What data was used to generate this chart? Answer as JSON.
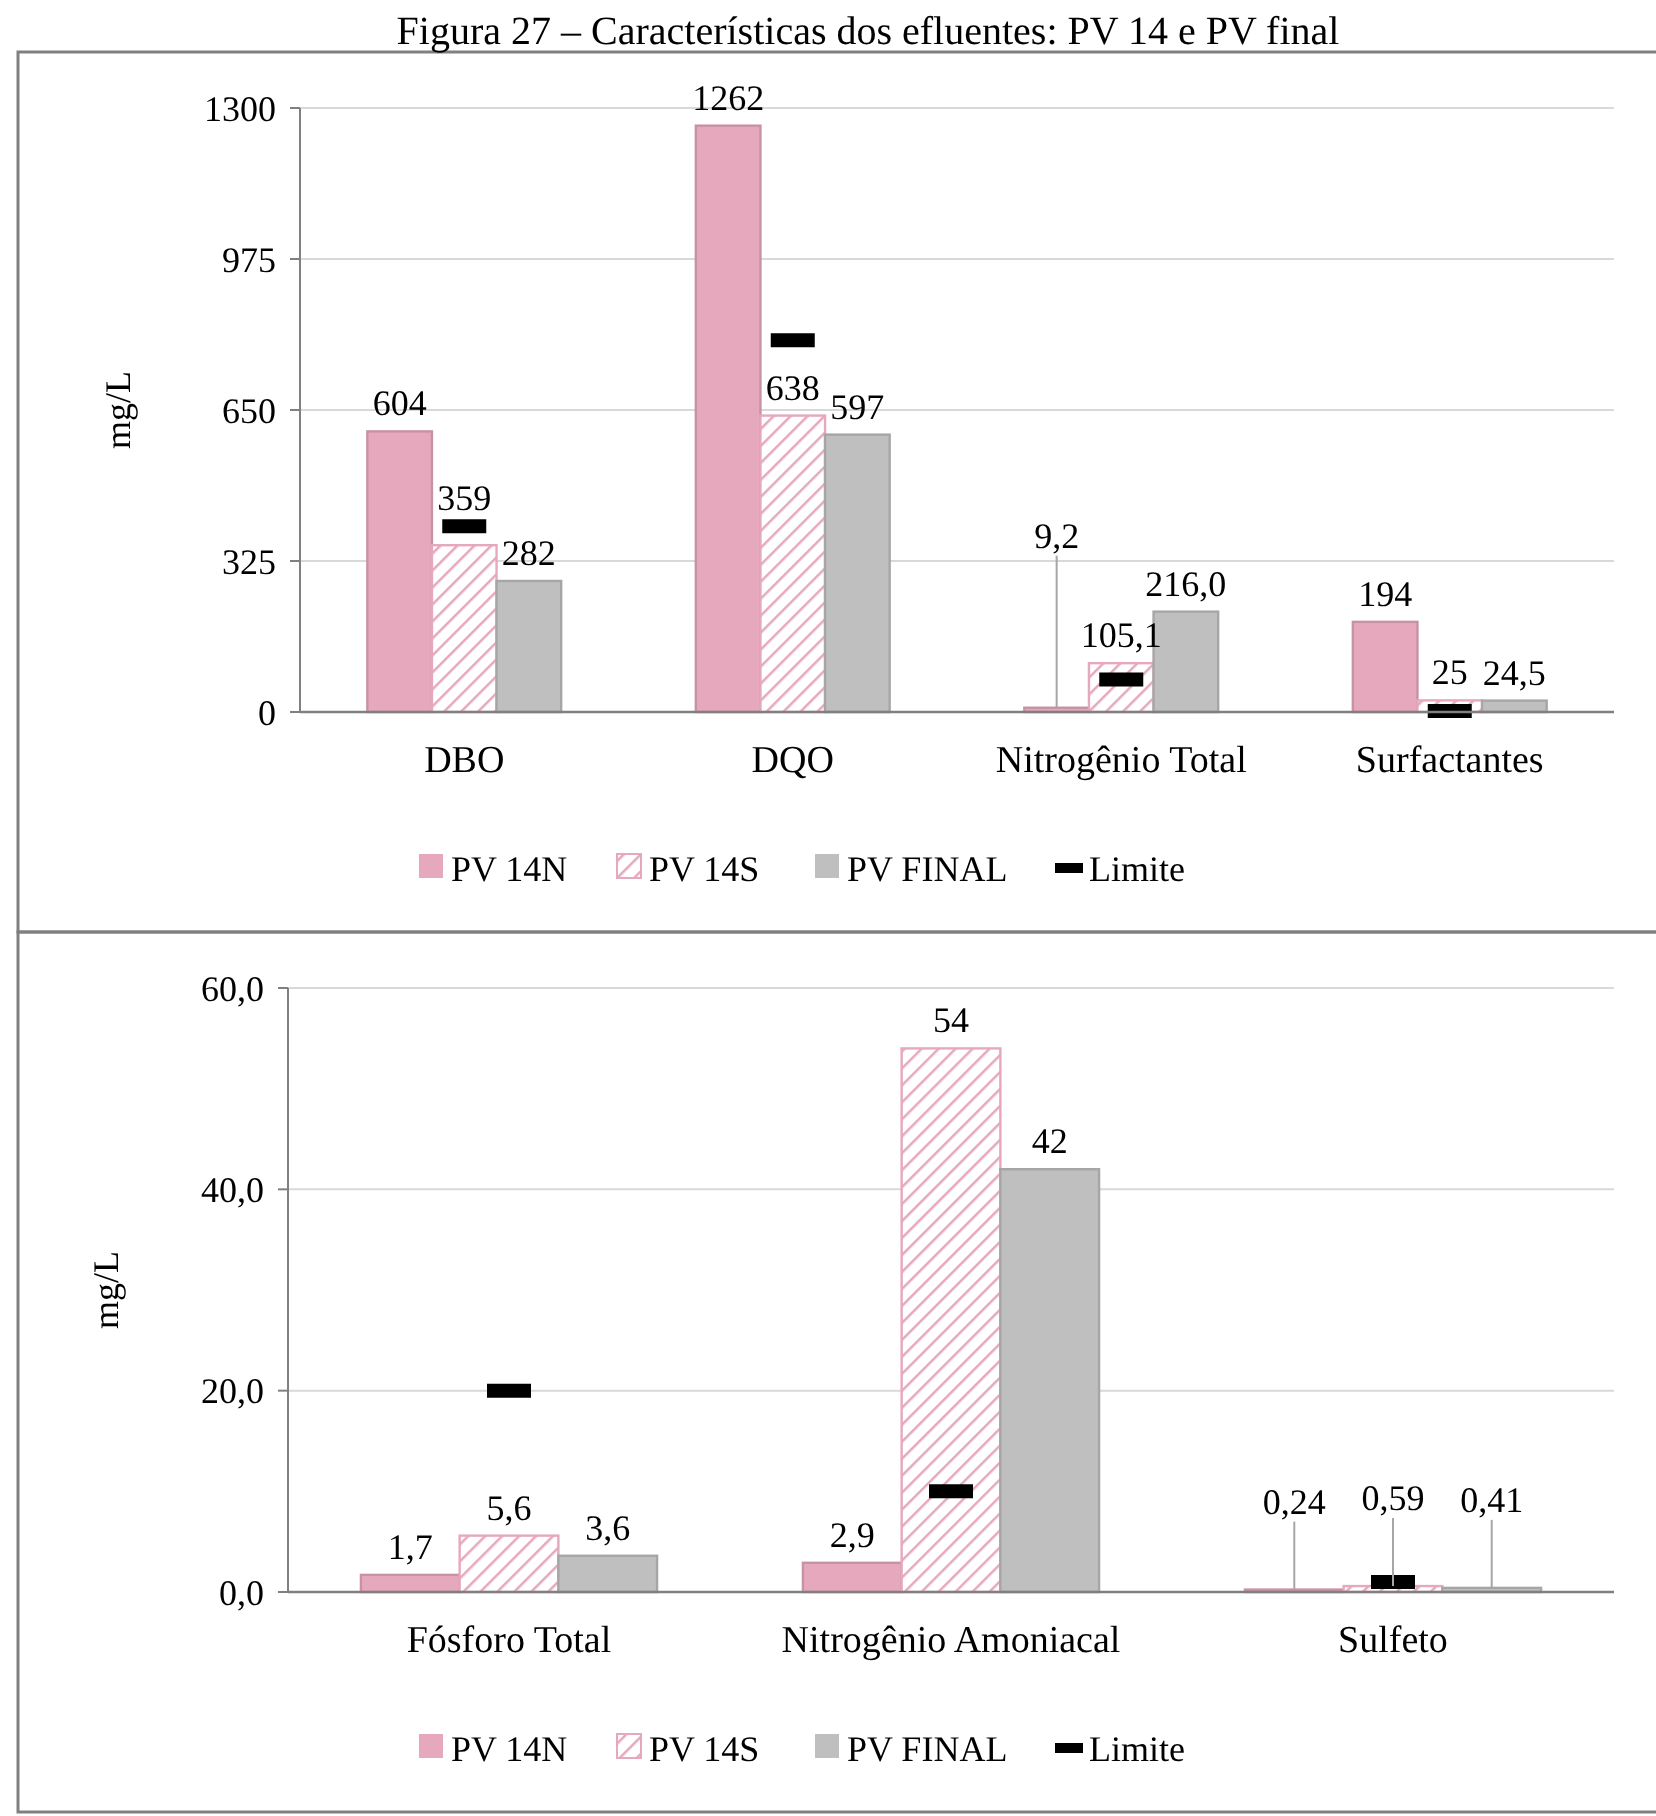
{
  "chart_data": [
    {
      "type": "bar",
      "title": "Figura 27 – Características dos efluentes: PV 14 e PV final",
      "ylabel": "mg/L",
      "categories": [
        "DBO",
        "DQO",
        "Nitrogênio Total",
        "Surfactantes"
      ],
      "ylim": [
        0,
        1300
      ],
      "yticks": [
        0,
        325,
        650,
        975,
        1300
      ],
      "grid": "y",
      "legend": "bottom",
      "series": [
        {
          "name": "PV 14N",
          "color": "#e6a8bd",
          "values": [
            604,
            1262,
            9.2,
            194
          ],
          "value_labels": [
            "604",
            "1262",
            "9,2",
            "194"
          ]
        },
        {
          "name": "PV 14S",
          "color": "#e6a8bd",
          "values": [
            359,
            638,
            105.1,
            25
          ],
          "value_labels": [
            "359",
            "638",
            "105,1",
            "25"
          ]
        },
        {
          "name": "PV FINAL",
          "color": "#bfbfbf",
          "values": [
            282,
            597,
            216.0,
            24.5
          ],
          "value_labels": [
            "282",
            "597",
            "216,0",
            "24,5"
          ]
        },
        {
          "name": "Limite",
          "type": "scatter",
          "color": "#000000",
          "x": [
            "DBO",
            "DQO",
            "Nitrogênio Total",
            "Surfactantes"
          ],
          "values": [
            400,
            800,
            70,
            2
          ]
        }
      ]
    },
    {
      "type": "bar",
      "ylabel": "mg/L",
      "categories": [
        "Fósforo Total",
        "Nitrogênio Amoniacal",
        "Sulfeto"
      ],
      "ylim": [
        0,
        60
      ],
      "yticks": [
        {
          "value": 0,
          "label": "0,0"
        },
        {
          "value": 20,
          "label": "20,0"
        },
        {
          "value": 40,
          "label": "40,0"
        },
        {
          "value": 60,
          "label": "60,0"
        }
      ],
      "grid": "y",
      "legend": "bottom",
      "series": [
        {
          "name": "PV 14N",
          "color": "#e6a8bd",
          "values": [
            1.7,
            2.9,
            0.24
          ],
          "value_labels": [
            "1,7",
            "2,9",
            "0,24"
          ]
        },
        {
          "name": "PV 14S",
          "color": "#e6a8bd",
          "values": [
            5.6,
            54,
            0.59
          ],
          "value_labels": [
            "5,6",
            "54",
            "0,59"
          ]
        },
        {
          "name": "PV FINAL",
          "color": "#bfbfbf",
          "values": [
            3.6,
            42,
            0.41
          ],
          "value_labels": [
            "3,6",
            "42",
            "0,41"
          ]
        },
        {
          "name": "Limite",
          "type": "scatter",
          "color": "#000000",
          "x": [
            "Fósforo Total",
            "Nitrogênio Amoniacal",
            "Sulfeto"
          ],
          "values": [
            20,
            10,
            1
          ]
        }
      ]
    }
  ]
}
